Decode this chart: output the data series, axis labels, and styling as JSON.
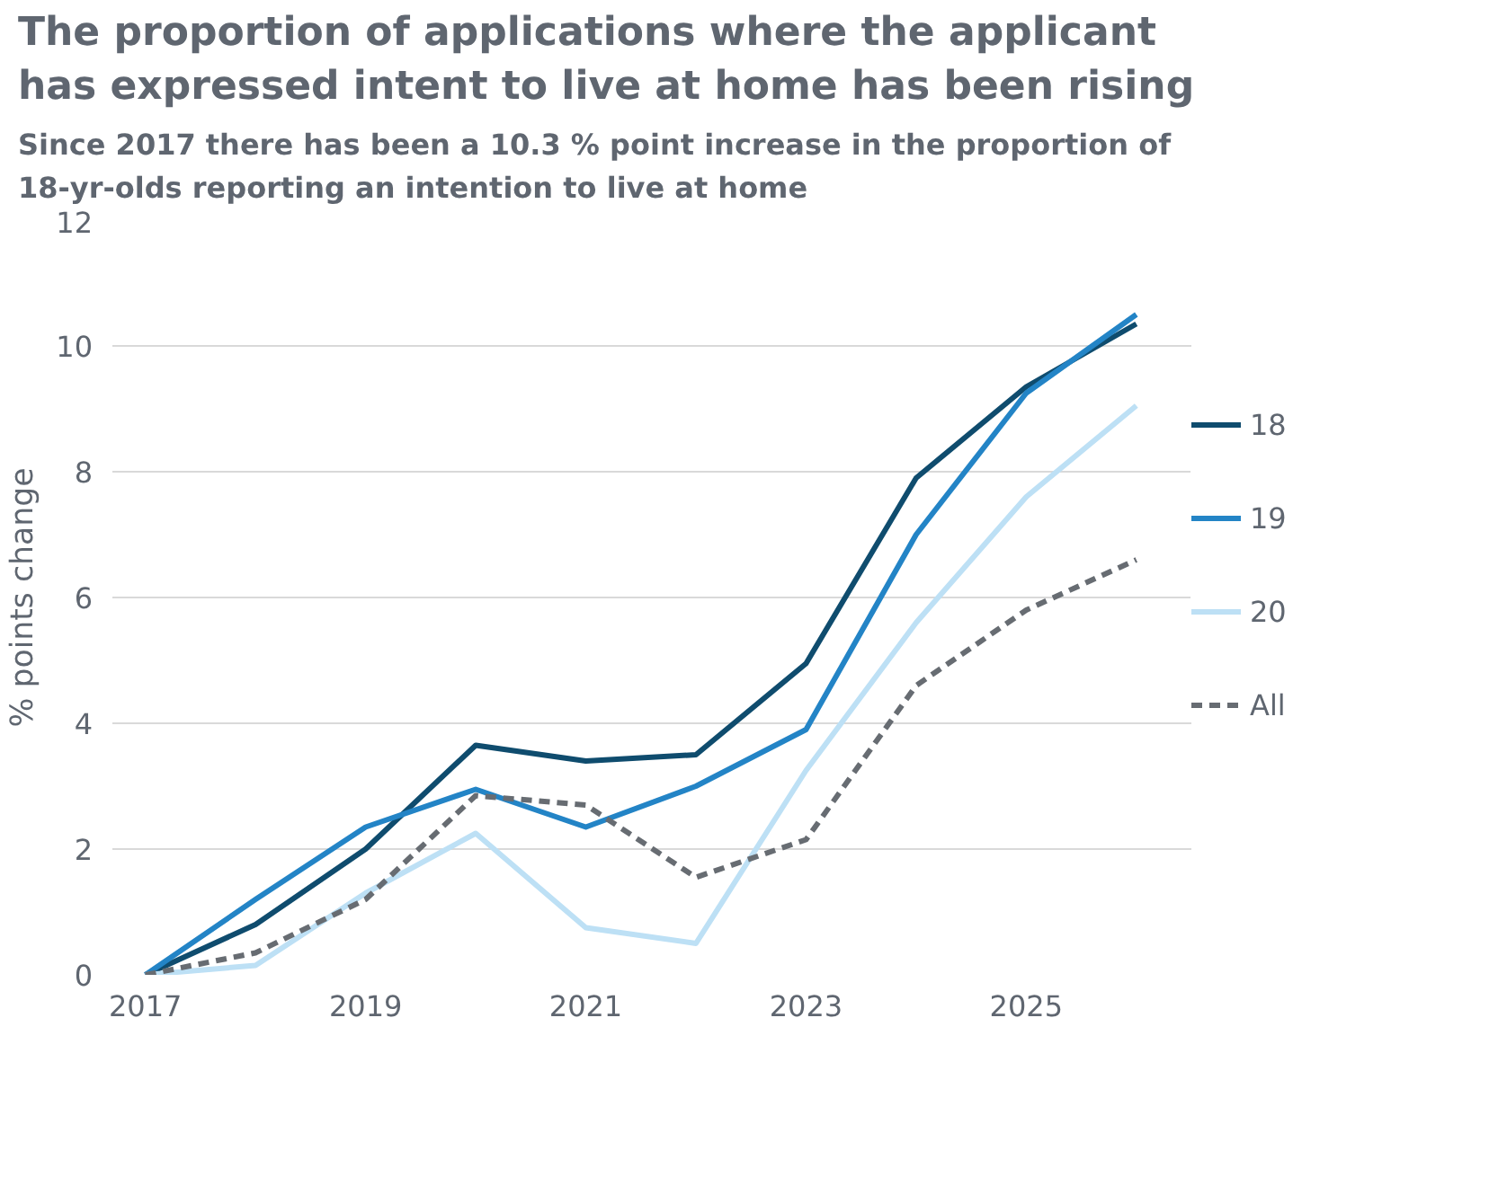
{
  "chart_data": {
    "type": "line",
    "title": "The proportion of applications where the applicant has expressed intent to live at home has been rising",
    "subtitle": "Since 2017 there has been a 10.3 % point increase in the proportion of 18-yr-olds reporting an intention to live at home",
    "ylabel": "% points change",
    "x": [
      2017,
      2018,
      2019,
      2020,
      2021,
      2022,
      2023,
      2024,
      2025,
      2026
    ],
    "series": [
      {
        "name": "18",
        "color": "#0f4c6e",
        "values": [
          0,
          0.8,
          2.0,
          3.65,
          3.4,
          3.5,
          4.95,
          7.9,
          9.35,
          10.35
        ]
      },
      {
        "name": "19",
        "color": "#2384c6",
        "values": [
          0,
          1.2,
          2.35,
          2.95,
          2.35,
          3.0,
          3.9,
          7.0,
          9.25,
          10.5
        ]
      },
      {
        "name": "20",
        "color": "#bde0f5",
        "values": [
          0,
          0.15,
          1.3,
          2.25,
          0.75,
          0.5,
          3.25,
          5.6,
          7.6,
          9.05
        ]
      },
      {
        "name": "All",
        "color": "#676c72",
        "values": [
          0,
          0.35,
          1.2,
          2.85,
          2.7,
          1.55,
          2.15,
          4.6,
          5.8,
          6.6
        ],
        "line_style": "dashed"
      }
    ],
    "xlim": [
      2016.7,
      2026.5
    ],
    "xticks": [
      2017,
      2019,
      2021,
      2023,
      2025
    ],
    "ylim": [
      0,
      12
    ],
    "yticks": [
      0,
      2,
      4,
      6,
      8,
      10,
      12
    ],
    "grid": "y",
    "legend": "right"
  }
}
